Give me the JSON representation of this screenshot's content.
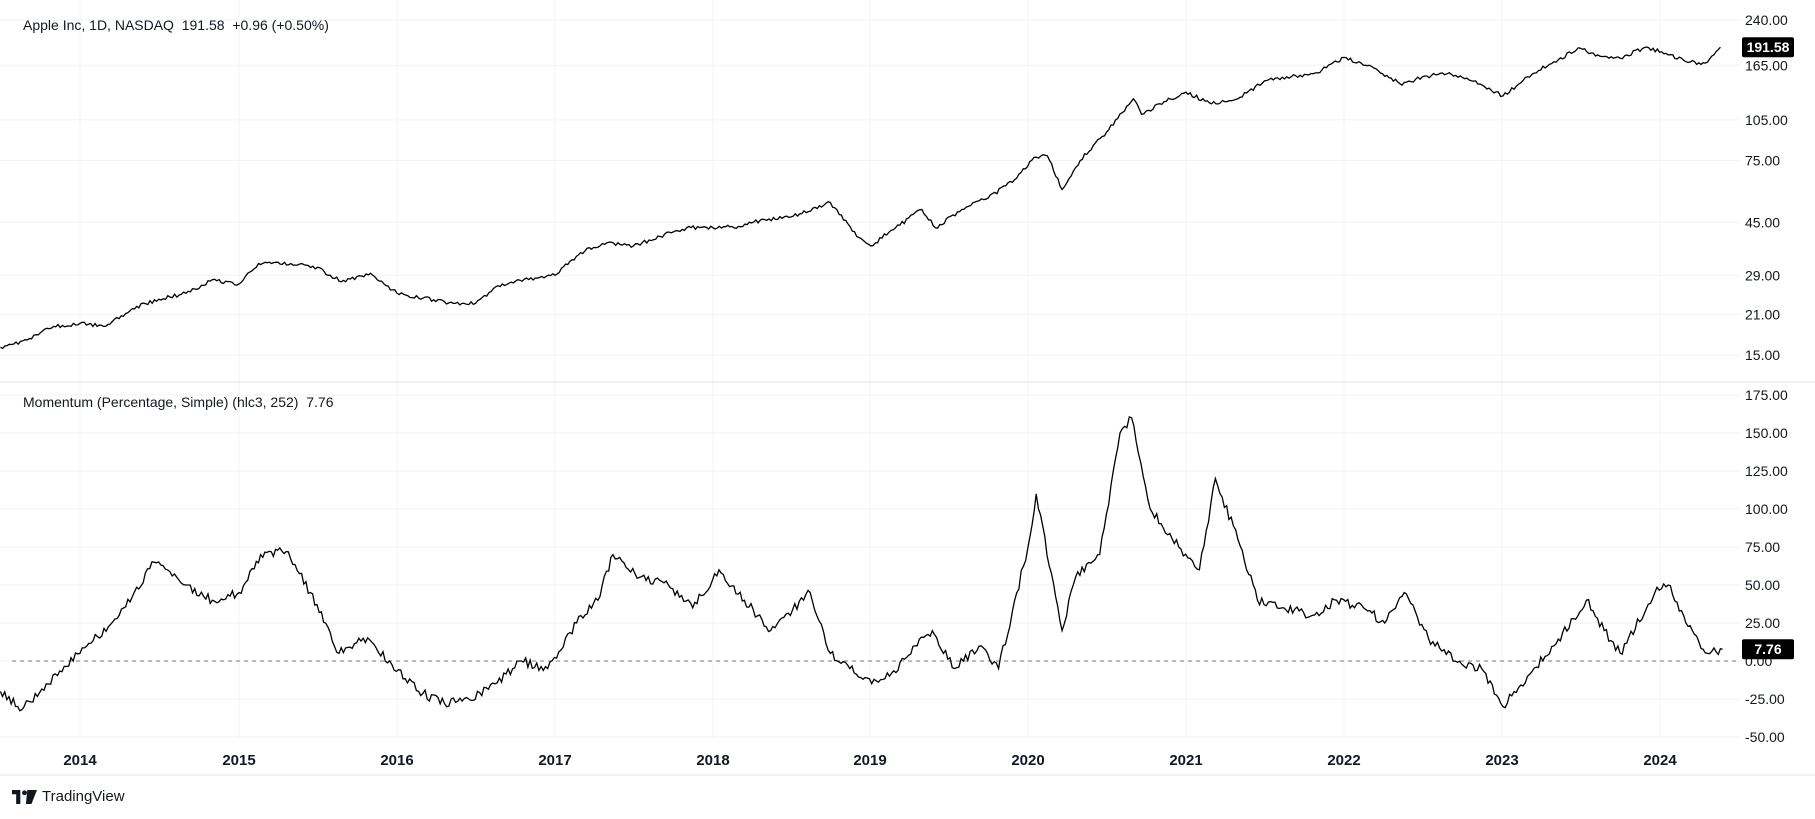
{
  "header": {
    "symbol_legend": "Apple Inc, 1D, NASDAQ",
    "price_last": "191.58",
    "price_change": "+0.96 (+0.50%)",
    "indicator_legend": "Momentum (Percentage, Simple) (hlc3, 252)",
    "indicator_last": "7.76"
  },
  "branding": {
    "logo_text": "TradingView",
    "logo_icon": "tradingview-logo-icon"
  },
  "colors": {
    "line": "#000000",
    "grid": "#f0f3fa",
    "text": "#131722",
    "badge_bg": "#000000",
    "badge_text": "#ffffff",
    "zero_line": "#787b86"
  },
  "chart_data": [
    {
      "type": "line",
      "title": "Apple Inc, 1D, NASDAQ",
      "scale": "log",
      "series": [
        {
          "name": "Apple Inc",
          "x": [
            "2013-07-01",
            "2013-09-01",
            "2013-11-01",
            "2014-01-01",
            "2014-03-01",
            "2014-05-01",
            "2014-07-01",
            "2014-09-01",
            "2014-11-01",
            "2015-01-01",
            "2015-02-15",
            "2015-05-01",
            "2015-07-01",
            "2015-08-25",
            "2015-11-01",
            "2016-01-01",
            "2016-03-01",
            "2016-05-15",
            "2016-07-01",
            "2016-09-01",
            "2016-11-01",
            "2017-01-01",
            "2017-03-01",
            "2017-05-01",
            "2017-07-01",
            "2017-09-01",
            "2017-11-01",
            "2018-01-01",
            "2018-03-01",
            "2018-05-01",
            "2018-07-01",
            "2018-10-01",
            "2018-12-01",
            "2019-01-03",
            "2019-03-01",
            "2019-05-01",
            "2019-06-01",
            "2019-08-01",
            "2019-10-01",
            "2019-12-01",
            "2020-01-15",
            "2020-02-15",
            "2020-03-20",
            "2020-05-01",
            "2020-07-01",
            "2020-09-01",
            "2020-09-20",
            "2020-11-01",
            "2021-01-01",
            "2021-03-01",
            "2021-05-01",
            "2021-07-01",
            "2021-09-01",
            "2021-11-01",
            "2022-01-01",
            "2022-03-01",
            "2022-05-15",
            "2022-07-01",
            "2022-09-01",
            "2022-11-01",
            "2023-01-03",
            "2023-03-01",
            "2023-05-01",
            "2023-07-01",
            "2023-08-15",
            "2023-10-01",
            "2023-12-01",
            "2024-01-15",
            "2024-03-01",
            "2024-04-15",
            "2024-05-20"
          ],
          "values": [
            16,
            17,
            19,
            19.5,
            19,
            22,
            23.8,
            25,
            28,
            27,
            32,
            32,
            31,
            27.5,
            29.5,
            25,
            24,
            23,
            23,
            27,
            28,
            29,
            35,
            38,
            37,
            40,
            43,
            43,
            43.5,
            46,
            47,
            53,
            40,
            37,
            43,
            50,
            43,
            50,
            55,
            64,
            77,
            78,
            59,
            75,
            95,
            125,
            110,
            120,
            132,
            120,
            125,
            145,
            150,
            155,
            176,
            165,
            140,
            150,
            155,
            145,
            128,
            150,
            170,
            190,
            178,
            175,
            192,
            182,
            170,
            168,
            191.58
          ]
        }
      ],
      "price_axis_ticks": [
        "240.00",
        "165.00",
        "105.00",
        "75.00",
        "45.00",
        "29.00",
        "21.00",
        "15.00"
      ],
      "last_value_label": "191.58",
      "grid": true,
      "legend_placement": "top-left"
    },
    {
      "type": "line",
      "title": "Momentum (Percentage, Simple) (hlc3, 252)",
      "series": [
        {
          "name": "Momentum",
          "x": [
            "2013-07-01",
            "2013-08-20",
            "2013-10-15",
            "2014-01-01",
            "2014-04-01",
            "2014-06-20",
            "2014-09-01",
            "2014-11-01",
            "2015-01-01",
            "2015-02-20",
            "2015-04-20",
            "2015-06-15",
            "2015-08-20",
            "2015-10-15",
            "2015-12-15",
            "2016-02-20",
            "2016-04-20",
            "2016-06-15",
            "2016-08-15",
            "2016-10-15",
            "2016-12-15",
            "2017-02-20",
            "2017-04-10",
            "2017-05-15",
            "2017-07-15",
            "2017-09-20",
            "2017-11-15",
            "2018-01-15",
            "2018-03-15",
            "2018-05-15",
            "2018-08-15",
            "2018-10-01",
            "2018-11-15",
            "2019-01-05",
            "2019-02-15",
            "2019-04-20",
            "2019-05-25",
            "2019-07-15",
            "2019-09-15",
            "2019-10-25",
            "2020-01-01",
            "2020-01-20",
            "2020-03-20",
            "2020-04-20",
            "2020-06-15",
            "2020-08-01",
            "2020-08-28",
            "2020-10-10",
            "2020-12-15",
            "2021-02-01",
            "2021-03-10",
            "2021-05-01",
            "2021-06-15",
            "2021-08-15",
            "2021-10-20",
            "2021-12-15",
            "2022-02-15",
            "2022-04-05",
            "2022-05-20",
            "2022-07-15",
            "2022-09-15",
            "2022-11-15",
            "2023-01-03",
            "2023-03-01",
            "2023-05-01",
            "2023-07-15",
            "2023-08-25",
            "2023-10-01",
            "2023-12-20",
            "2024-01-20",
            "2024-03-01",
            "2024-04-20",
            "2024-05-25"
          ],
          "values": [
            -20,
            -32,
            -15,
            5,
            30,
            65,
            50,
            40,
            45,
            70,
            72,
            45,
            5,
            15,
            0,
            -20,
            -28,
            -25,
            -15,
            0,
            -5,
            25,
            40,
            70,
            55,
            50,
            35,
            60,
            40,
            20,
            45,
            5,
            -5,
            -15,
            -10,
            10,
            20,
            -5,
            10,
            -5,
            75,
            110,
            20,
            55,
            70,
            150,
            160,
            100,
            75,
            60,
            120,
            80,
            40,
            35,
            30,
            40,
            35,
            25,
            45,
            15,
            0,
            -5,
            -30,
            -10,
            10,
            40,
            20,
            5,
            45,
            50,
            25,
            5,
            7.76
          ]
        }
      ],
      "y_ticks": [
        "175.00",
        "150.00",
        "125.00",
        "100.00",
        "75.00",
        "50.00",
        "25.00",
        "0.00",
        "-25.00",
        "-50.00"
      ],
      "ylim": [
        -50,
        175
      ],
      "reference_line": 0,
      "last_value_label": "7.76",
      "grid": true,
      "legend_placement": "top-left"
    }
  ],
  "time_axis_labels": [
    "2014",
    "2015",
    "2016",
    "2017",
    "2018",
    "2019",
    "2020",
    "2021",
    "2022",
    "2023",
    "2024"
  ]
}
